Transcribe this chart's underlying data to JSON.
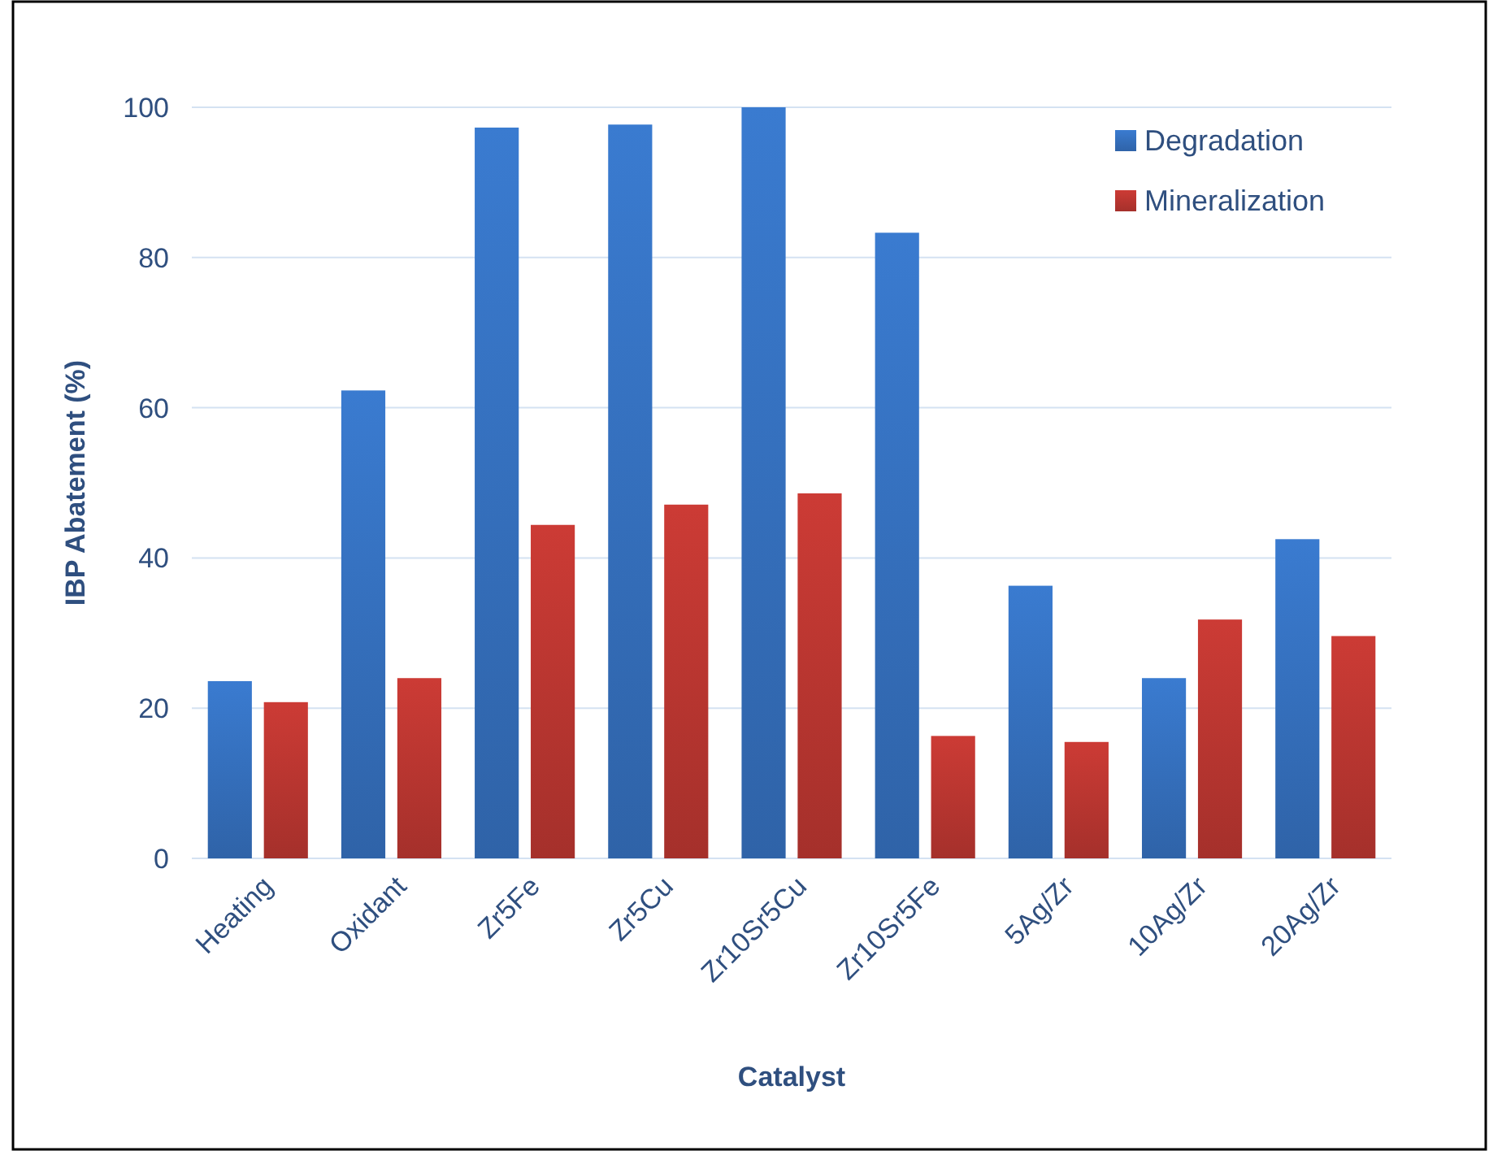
{
  "chart_data": {
    "type": "bar",
    "xlabel": "Catalyst",
    "ylabel": "IBP Abatement (%)",
    "categories": [
      "Heating",
      "Oxidant",
      "Zr5Fe",
      "Zr5Cu",
      "Zr10Sr5Cu",
      "Zr10Sr5Fe",
      "5Ag/Zr",
      "10Ag/Zr",
      "20Ag/Zr"
    ],
    "series": [
      {
        "name": "Degradation",
        "color": "#3a7bd0",
        "values": [
          23.6,
          62.3,
          97.3,
          97.7,
          100,
          83.3,
          36.3,
          24.0,
          42.5
        ]
      },
      {
        "name": "Mineralization",
        "color": "#cc3b35",
        "values": [
          20.8,
          24.0,
          44.4,
          47.1,
          48.6,
          16.3,
          15.5,
          31.8,
          29.6
        ]
      }
    ],
    "ylim": [
      0,
      100
    ],
    "yticks": [
      0,
      20,
      40,
      60,
      80,
      100
    ],
    "grid": "y",
    "legend": "top right"
  }
}
